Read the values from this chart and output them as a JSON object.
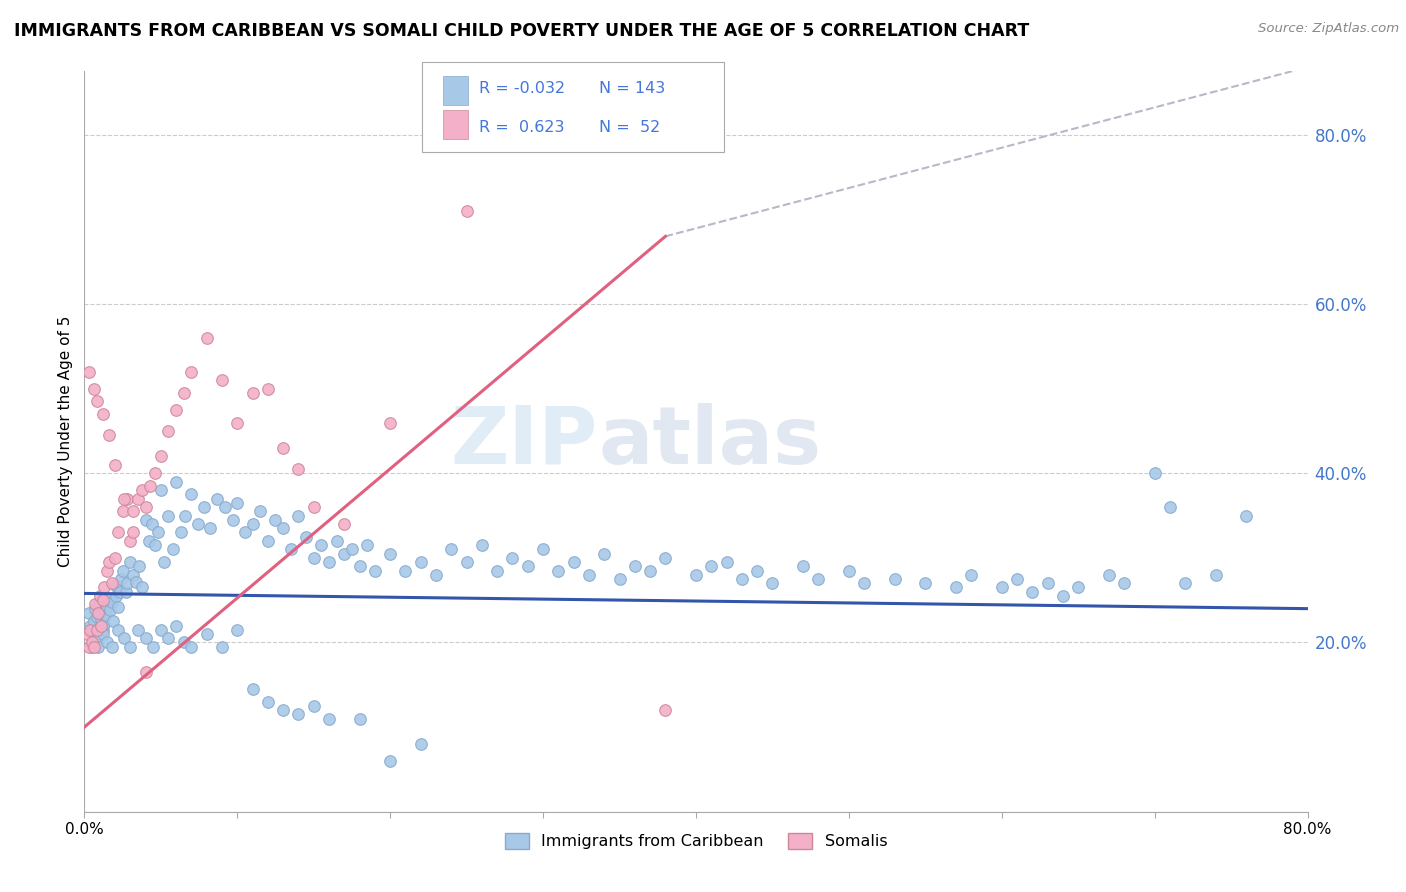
{
  "title": "IMMIGRANTS FROM CARIBBEAN VS SOMALI CHILD POVERTY UNDER THE AGE OF 5 CORRELATION CHART",
  "source": "Source: ZipAtlas.com",
  "ylabel": "Child Poverty Under the Age of 5",
  "legend_label1": "Immigrants from Caribbean",
  "legend_label2": "Somalis",
  "r1": "-0.032",
  "n1": "143",
  "r2": "0.623",
  "n2": "52",
  "color_blue": "#a8c8e8",
  "color_pink": "#f4b0c8",
  "color_blue_line": "#3355aa",
  "color_pink_line": "#e06080",
  "color_dashed_line": "#b8b8c8",
  "color_r_blue": "#4477dd",
  "color_r_pink": "#cc3366",
  "color_n": "#4477dd",
  "xlim": [
    0.0,
    0.8
  ],
  "ylim": [
    0.0,
    0.875
  ],
  "yticks": [
    0.2,
    0.4,
    0.6,
    0.8
  ],
  "xticks": [
    0.0,
    0.1,
    0.2,
    0.3,
    0.4,
    0.5,
    0.6,
    0.7,
    0.8
  ],
  "watermark_zip": "ZIP",
  "watermark_atlas": "atlas",
  "blue_scatter_x": [
    0.003,
    0.004,
    0.005,
    0.006,
    0.007,
    0.008,
    0.009,
    0.01,
    0.011,
    0.012,
    0.013,
    0.014,
    0.015,
    0.016,
    0.017,
    0.018,
    0.019,
    0.02,
    0.021,
    0.022,
    0.023,
    0.024,
    0.025,
    0.027,
    0.028,
    0.03,
    0.032,
    0.034,
    0.036,
    0.038,
    0.04,
    0.042,
    0.044,
    0.046,
    0.048,
    0.05,
    0.052,
    0.055,
    0.058,
    0.06,
    0.063,
    0.066,
    0.07,
    0.074,
    0.078,
    0.082,
    0.087,
    0.092,
    0.097,
    0.1,
    0.105,
    0.11,
    0.115,
    0.12,
    0.125,
    0.13,
    0.135,
    0.14,
    0.145,
    0.15,
    0.155,
    0.16,
    0.165,
    0.17,
    0.175,
    0.18,
    0.185,
    0.19,
    0.2,
    0.21,
    0.22,
    0.23,
    0.24,
    0.25,
    0.26,
    0.27,
    0.28,
    0.29,
    0.3,
    0.31,
    0.32,
    0.33,
    0.34,
    0.35,
    0.36,
    0.37,
    0.38,
    0.4,
    0.41,
    0.42,
    0.43,
    0.44,
    0.45,
    0.47,
    0.48,
    0.5,
    0.51,
    0.53,
    0.55,
    0.57,
    0.58,
    0.6,
    0.61,
    0.62,
    0.63,
    0.64,
    0.65,
    0.67,
    0.68,
    0.7,
    0.71,
    0.72,
    0.74,
    0.76,
    0.005,
    0.007,
    0.009,
    0.012,
    0.015,
    0.018,
    0.022,
    0.026,
    0.03,
    0.035,
    0.04,
    0.045,
    0.05,
    0.055,
    0.06,
    0.065,
    0.07,
    0.08,
    0.09,
    0.1,
    0.11,
    0.12,
    0.13,
    0.14,
    0.15,
    0.16,
    0.18,
    0.2,
    0.22
  ],
  "blue_scatter_y": [
    0.235,
    0.22,
    0.215,
    0.225,
    0.24,
    0.23,
    0.245,
    0.218,
    0.228,
    0.215,
    0.222,
    0.232,
    0.242,
    0.252,
    0.238,
    0.248,
    0.225,
    0.268,
    0.255,
    0.242,
    0.26,
    0.275,
    0.285,
    0.26,
    0.27,
    0.295,
    0.28,
    0.272,
    0.29,
    0.265,
    0.345,
    0.32,
    0.34,
    0.315,
    0.33,
    0.38,
    0.295,
    0.35,
    0.31,
    0.39,
    0.33,
    0.35,
    0.375,
    0.34,
    0.36,
    0.335,
    0.37,
    0.36,
    0.345,
    0.365,
    0.33,
    0.34,
    0.355,
    0.32,
    0.345,
    0.335,
    0.31,
    0.35,
    0.325,
    0.3,
    0.315,
    0.295,
    0.32,
    0.305,
    0.31,
    0.29,
    0.315,
    0.285,
    0.305,
    0.285,
    0.295,
    0.28,
    0.31,
    0.295,
    0.315,
    0.285,
    0.3,
    0.29,
    0.31,
    0.285,
    0.295,
    0.28,
    0.305,
    0.275,
    0.29,
    0.285,
    0.3,
    0.28,
    0.29,
    0.295,
    0.275,
    0.285,
    0.27,
    0.29,
    0.275,
    0.285,
    0.27,
    0.275,
    0.27,
    0.265,
    0.28,
    0.265,
    0.275,
    0.26,
    0.27,
    0.255,
    0.265,
    0.28,
    0.27,
    0.4,
    0.36,
    0.27,
    0.28,
    0.35,
    0.195,
    0.205,
    0.195,
    0.21,
    0.2,
    0.195,
    0.215,
    0.205,
    0.195,
    0.215,
    0.205,
    0.195,
    0.215,
    0.205,
    0.22,
    0.2,
    0.195,
    0.21,
    0.195,
    0.215,
    0.145,
    0.13,
    0.12,
    0.115,
    0.125,
    0.11,
    0.11,
    0.06,
    0.08
  ],
  "pink_scatter_x": [
    0.002,
    0.003,
    0.004,
    0.005,
    0.006,
    0.007,
    0.008,
    0.009,
    0.01,
    0.011,
    0.012,
    0.013,
    0.015,
    0.016,
    0.018,
    0.02,
    0.022,
    0.025,
    0.028,
    0.03,
    0.032,
    0.035,
    0.038,
    0.04,
    0.043,
    0.046,
    0.05,
    0.055,
    0.06,
    0.065,
    0.07,
    0.08,
    0.09,
    0.1,
    0.11,
    0.12,
    0.13,
    0.14,
    0.15,
    0.17,
    0.2,
    0.25,
    0.38,
    0.003,
    0.006,
    0.008,
    0.012,
    0.016,
    0.02,
    0.026,
    0.032,
    0.04
  ],
  "pink_scatter_y": [
    0.21,
    0.195,
    0.215,
    0.2,
    0.195,
    0.245,
    0.215,
    0.235,
    0.255,
    0.22,
    0.25,
    0.265,
    0.285,
    0.295,
    0.27,
    0.3,
    0.33,
    0.355,
    0.37,
    0.32,
    0.355,
    0.37,
    0.38,
    0.36,
    0.385,
    0.4,
    0.42,
    0.45,
    0.475,
    0.495,
    0.52,
    0.56,
    0.51,
    0.46,
    0.495,
    0.5,
    0.43,
    0.405,
    0.36,
    0.34,
    0.46,
    0.71,
    0.12,
    0.52,
    0.5,
    0.485,
    0.47,
    0.445,
    0.41,
    0.37,
    0.33,
    0.165
  ],
  "blue_trend_x": [
    0.0,
    0.8
  ],
  "blue_trend_y": [
    0.258,
    0.24
  ],
  "pink_trend_x": [
    0.0,
    0.38
  ],
  "pink_trend_y": [
    0.1,
    0.68
  ],
  "dashed_trend_x": [
    0.38,
    0.8
  ],
  "dashed_trend_y": [
    0.68,
    0.88
  ]
}
